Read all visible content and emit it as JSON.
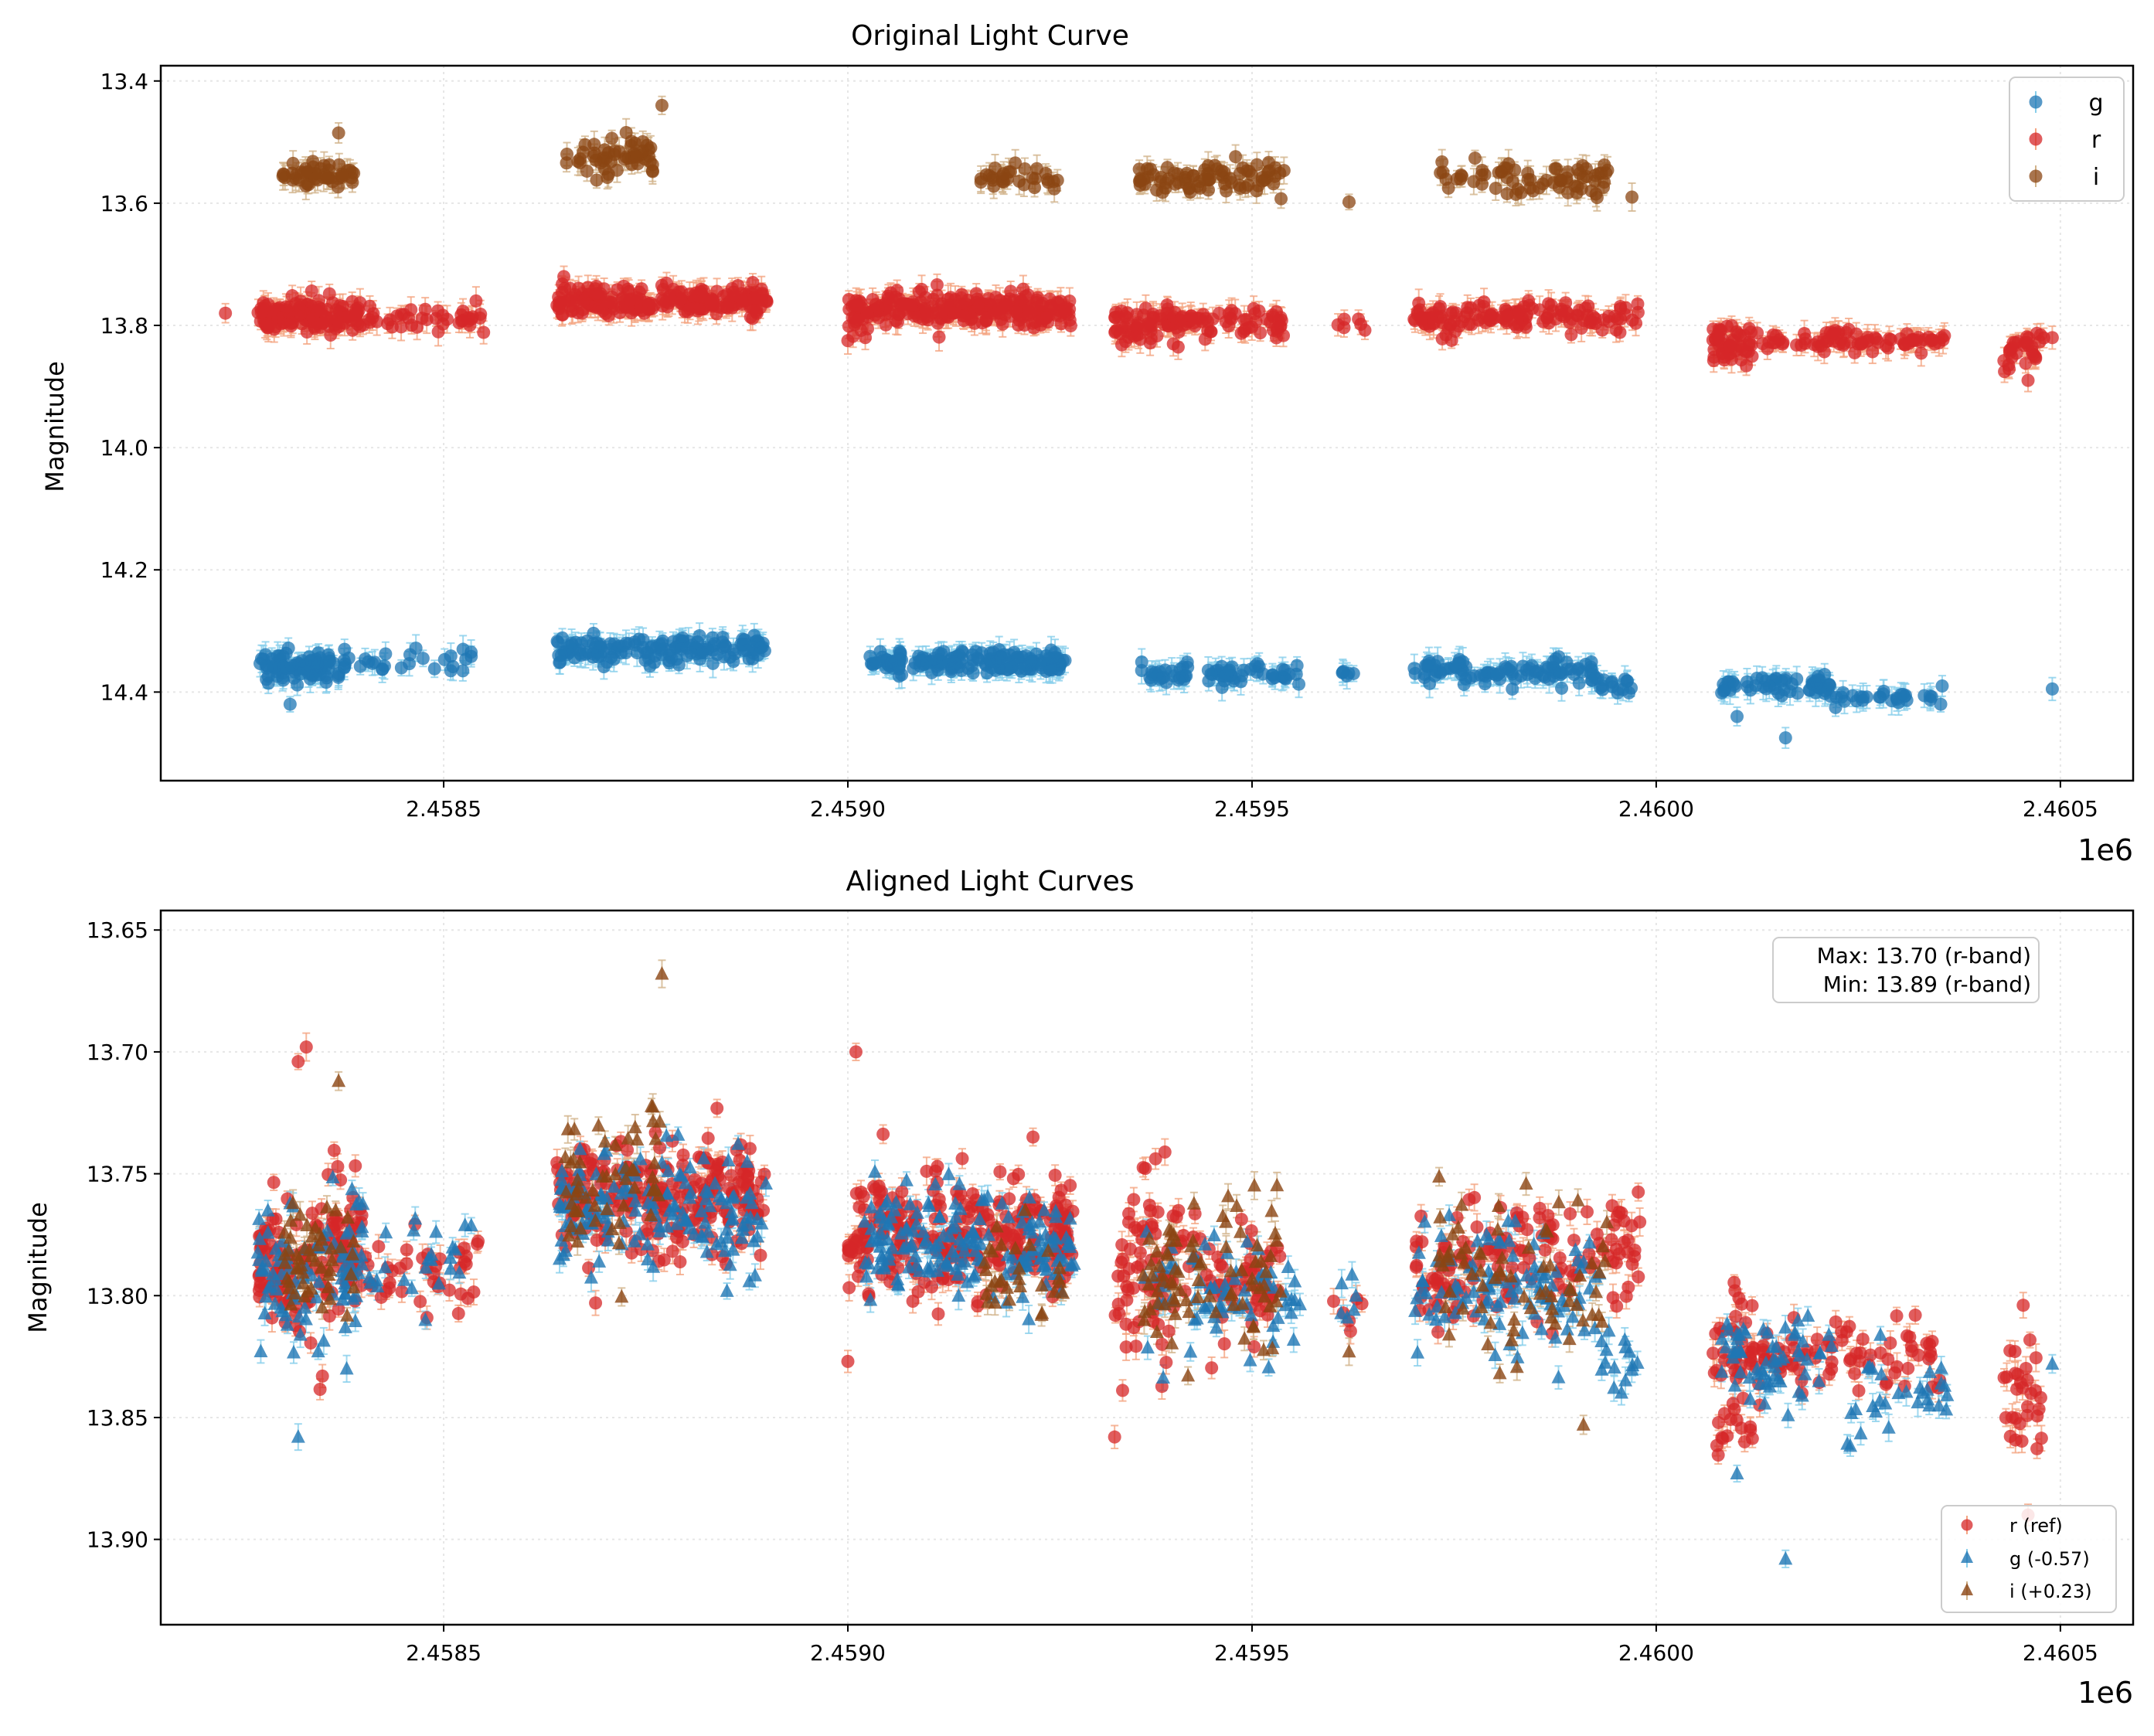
{
  "colors": {
    "g": "#1f77b4",
    "r": "#d62728",
    "i": "#8b4513",
    "g_err": "#87ceeb",
    "r_err": "#f4a582",
    "i_err": "#d2b48c",
    "grid": "#e6e6e6"
  },
  "chart_data": [
    {
      "type": "scatter",
      "title": "Original Light Curve",
      "xlabel": "",
      "ylabel": "Magnitude",
      "x_offset_label": "1e6",
      "xlim": [
        2.45815,
        2.46059
      ],
      "ylim": [
        14.545,
        13.375
      ],
      "y_inverted": true,
      "xticks": [
        2.4585,
        2.459,
        2.4595,
        2.46,
        2.4605
      ],
      "xtick_labels": [
        "2.4585",
        "2.4590",
        "2.4595",
        "2.4600",
        "2.4605"
      ],
      "yticks": [
        13.4,
        13.6,
        13.8,
        14.0,
        14.2,
        14.4
      ],
      "ytick_labels": [
        "13.4",
        "13.6",
        "13.8",
        "14.0",
        "14.2",
        "14.4"
      ],
      "grid": true,
      "legend": {
        "position": "top-right",
        "entries": [
          "g",
          "r",
          "i"
        ]
      },
      "series": [
        {
          "name": "g",
          "marker": "circle",
          "color_key": "g",
          "err_key": "g_err",
          "clusters": [
            [
              2.45827,
              2.45838,
              14.36,
              0.022,
              90
            ],
            [
              2.45838,
              2.45854,
              14.35,
              0.015,
              25
            ],
            [
              2.45864,
              2.4589,
              14.33,
              0.018,
              150
            ],
            [
              2.45902,
              2.45927,
              14.35,
              0.015,
              170
            ],
            [
              2.45936,
              2.45956,
              14.37,
              0.015,
              70
            ],
            [
              2.45961,
              2.45963,
              14.37,
              0.008,
              6
            ],
            [
              2.4597,
              2.45993,
              14.365,
              0.018,
              100
            ],
            [
              2.45993,
              2.45997,
              14.39,
              0.012,
              15
            ],
            [
              2.46008,
              2.46022,
              14.39,
              0.015,
              60
            ],
            [
              2.46022,
              2.46036,
              14.41,
              0.012,
              30
            ]
          ],
          "extra_points": [
            [
              2.4601,
              14.44
            ],
            [
              2.46016,
              14.475
            ],
            [
              2.46049,
              14.395
            ],
            [
              2.45831,
              14.42
            ]
          ]
        },
        {
          "name": "r",
          "marker": "circle",
          "color_key": "r",
          "err_key": "r_err",
          "clusters": [
            [
              2.45827,
              2.4584,
              13.785,
              0.025,
              140
            ],
            [
              2.4584,
              2.45855,
              13.79,
              0.015,
              40
            ],
            [
              2.45864,
              2.4589,
              13.76,
              0.02,
              220
            ],
            [
              2.459,
              2.45928,
              13.775,
              0.022,
              260
            ],
            [
              2.45933,
              2.45941,
              13.8,
              0.03,
              70
            ],
            [
              2.45941,
              2.45954,
              13.79,
              0.02,
              60
            ],
            [
              2.4596,
              2.45964,
              13.8,
              0.012,
              6
            ],
            [
              2.4597,
              2.45976,
              13.79,
              0.025,
              40
            ],
            [
              2.45976,
              2.45998,
              13.785,
              0.02,
              100
            ],
            [
              2.46007,
              2.46012,
              13.83,
              0.025,
              50
            ],
            [
              2.46012,
              2.46036,
              13.825,
              0.012,
              80
            ],
            [
              2.46043,
              2.46048,
              13.84,
              0.025,
              30
            ]
          ],
          "extra_points": [
            [
              2.45823,
              13.78
            ],
            [
              2.45854,
              13.76
            ],
            [
              2.459,
              13.825
            ],
            [
              2.46049,
              13.82
            ],
            [
              2.46046,
              13.89
            ]
          ]
        },
        {
          "name": "i",
          "marker": "circle",
          "color_key": "i",
          "err_key": "i_err",
          "clusters": [
            [
              2.4583,
              2.45839,
              13.555,
              0.018,
              50
            ],
            [
              2.45865,
              2.45876,
              13.525,
              0.025,
              55
            ],
            [
              2.45916,
              2.45926,
              13.56,
              0.018,
              30
            ],
            [
              2.45936,
              2.45954,
              13.56,
              0.02,
              80
            ],
            [
              2.45973,
              2.45994,
              13.56,
              0.025,
              70
            ]
          ],
          "extra_points": [
            [
              2.45962,
              13.598
            ],
            [
              2.45997,
              13.59
            ],
            [
              2.45877,
              13.44
            ],
            [
              2.45837,
              13.485
            ]
          ]
        }
      ]
    },
    {
      "type": "scatter",
      "title": "Aligned Light Curves",
      "xlabel": "",
      "ylabel": "Magnitude",
      "x_offset_label": "1e6",
      "xlim": [
        2.45815,
        2.46059
      ],
      "ylim": [
        13.935,
        13.642
      ],
      "y_inverted": true,
      "xticks": [
        2.4585,
        2.459,
        2.4595,
        2.46,
        2.4605
      ],
      "xtick_labels": [
        "2.4585",
        "2.4590",
        "2.4595",
        "2.4600",
        "2.4605"
      ],
      "yticks": [
        13.65,
        13.7,
        13.75,
        13.8,
        13.85,
        13.9
      ],
      "ytick_labels": [
        "13.65",
        "13.70",
        "13.75",
        "13.80",
        "13.85",
        "13.90"
      ],
      "grid": true,
      "annotation": [
        "Max: 13.70 (r-band)",
        "Min: 13.89 (r-band)"
      ],
      "legend": {
        "position": "bottom-right",
        "entries": [
          "r (ref)",
          "g (-0.57)",
          "i (+0.23)"
        ]
      },
      "series": [
        {
          "name": "r (ref)",
          "marker": "circle",
          "color_key": "r",
          "err_key": "r_err",
          "clusters": [
            [
              2.45827,
              2.4584,
              13.785,
              0.025,
              140
            ],
            [
              2.4584,
              2.45855,
              13.79,
              0.015,
              40
            ],
            [
              2.45864,
              2.4589,
              13.76,
              0.02,
              220
            ],
            [
              2.459,
              2.45928,
              13.775,
              0.022,
              260
            ],
            [
              2.45933,
              2.45941,
              13.79,
              0.03,
              70
            ],
            [
              2.45941,
              2.45954,
              13.79,
              0.02,
              60
            ],
            [
              2.4596,
              2.45964,
              13.8,
              0.012,
              6
            ],
            [
              2.4597,
              2.45976,
              13.79,
              0.025,
              40
            ],
            [
              2.45976,
              2.45998,
              13.785,
              0.02,
              100
            ],
            [
              2.46007,
              2.46012,
              13.83,
              0.025,
              50
            ],
            [
              2.46012,
              2.46036,
              13.825,
              0.012,
              80
            ],
            [
              2.46043,
              2.46048,
              13.84,
              0.025,
              30
            ]
          ],
          "extra_points": [
            [
              2.45833,
              13.698
            ],
            [
              2.45832,
              13.704
            ],
            [
              2.45901,
              13.7
            ],
            [
              2.45933,
              13.858
            ],
            [
              2.46046,
              13.89
            ],
            [
              2.459,
              13.827
            ],
            [
              2.45835,
              13.833
            ]
          ]
        },
        {
          "name": "g (-0.57)",
          "marker": "triangle",
          "color_key": "g",
          "err_key": "g_err",
          "clusters": [
            [
              2.45827,
              2.4584,
              13.79,
              0.022,
              90
            ],
            [
              2.4584,
              2.45854,
              13.785,
              0.015,
              25
            ],
            [
              2.45864,
              2.4589,
              13.765,
              0.02,
              150
            ],
            [
              2.45902,
              2.45928,
              13.78,
              0.02,
              170
            ],
            [
              2.45936,
              2.45956,
              13.8,
              0.02,
              70
            ],
            [
              2.45961,
              2.45963,
              13.8,
              0.008,
              6
            ],
            [
              2.4597,
              2.45993,
              13.795,
              0.022,
              100
            ],
            [
              2.45993,
              2.45998,
              13.83,
              0.012,
              15
            ],
            [
              2.46008,
              2.46022,
              13.825,
              0.015,
              60
            ],
            [
              2.46022,
              2.46036,
              13.84,
              0.015,
              30
            ]
          ],
          "extra_points": [
            [
              2.45832,
              13.858
            ],
            [
              2.46016,
              13.908
            ],
            [
              2.46049,
              13.828
            ],
            [
              2.4601,
              13.873
            ],
            [
              2.45838,
              13.83
            ]
          ]
        },
        {
          "name": "i (+0.23)",
          "marker": "triangle",
          "color_key": "i",
          "err_key": "i_err",
          "clusters": [
            [
              2.4583,
              2.45839,
              13.785,
              0.02,
              50
            ],
            [
              2.45865,
              2.45877,
              13.755,
              0.025,
              55
            ],
            [
              2.45916,
              2.45927,
              13.79,
              0.02,
              30
            ],
            [
              2.45936,
              2.45954,
              13.79,
              0.025,
              80
            ],
            [
              2.45973,
              2.45994,
              13.79,
              0.025,
              70
            ]
          ],
          "extra_points": [
            [
              2.45877,
              13.668
            ],
            [
              2.45837,
              13.712
            ],
            [
              2.45962,
              13.823
            ],
            [
              2.45991,
              13.853
            ]
          ]
        }
      ]
    }
  ]
}
